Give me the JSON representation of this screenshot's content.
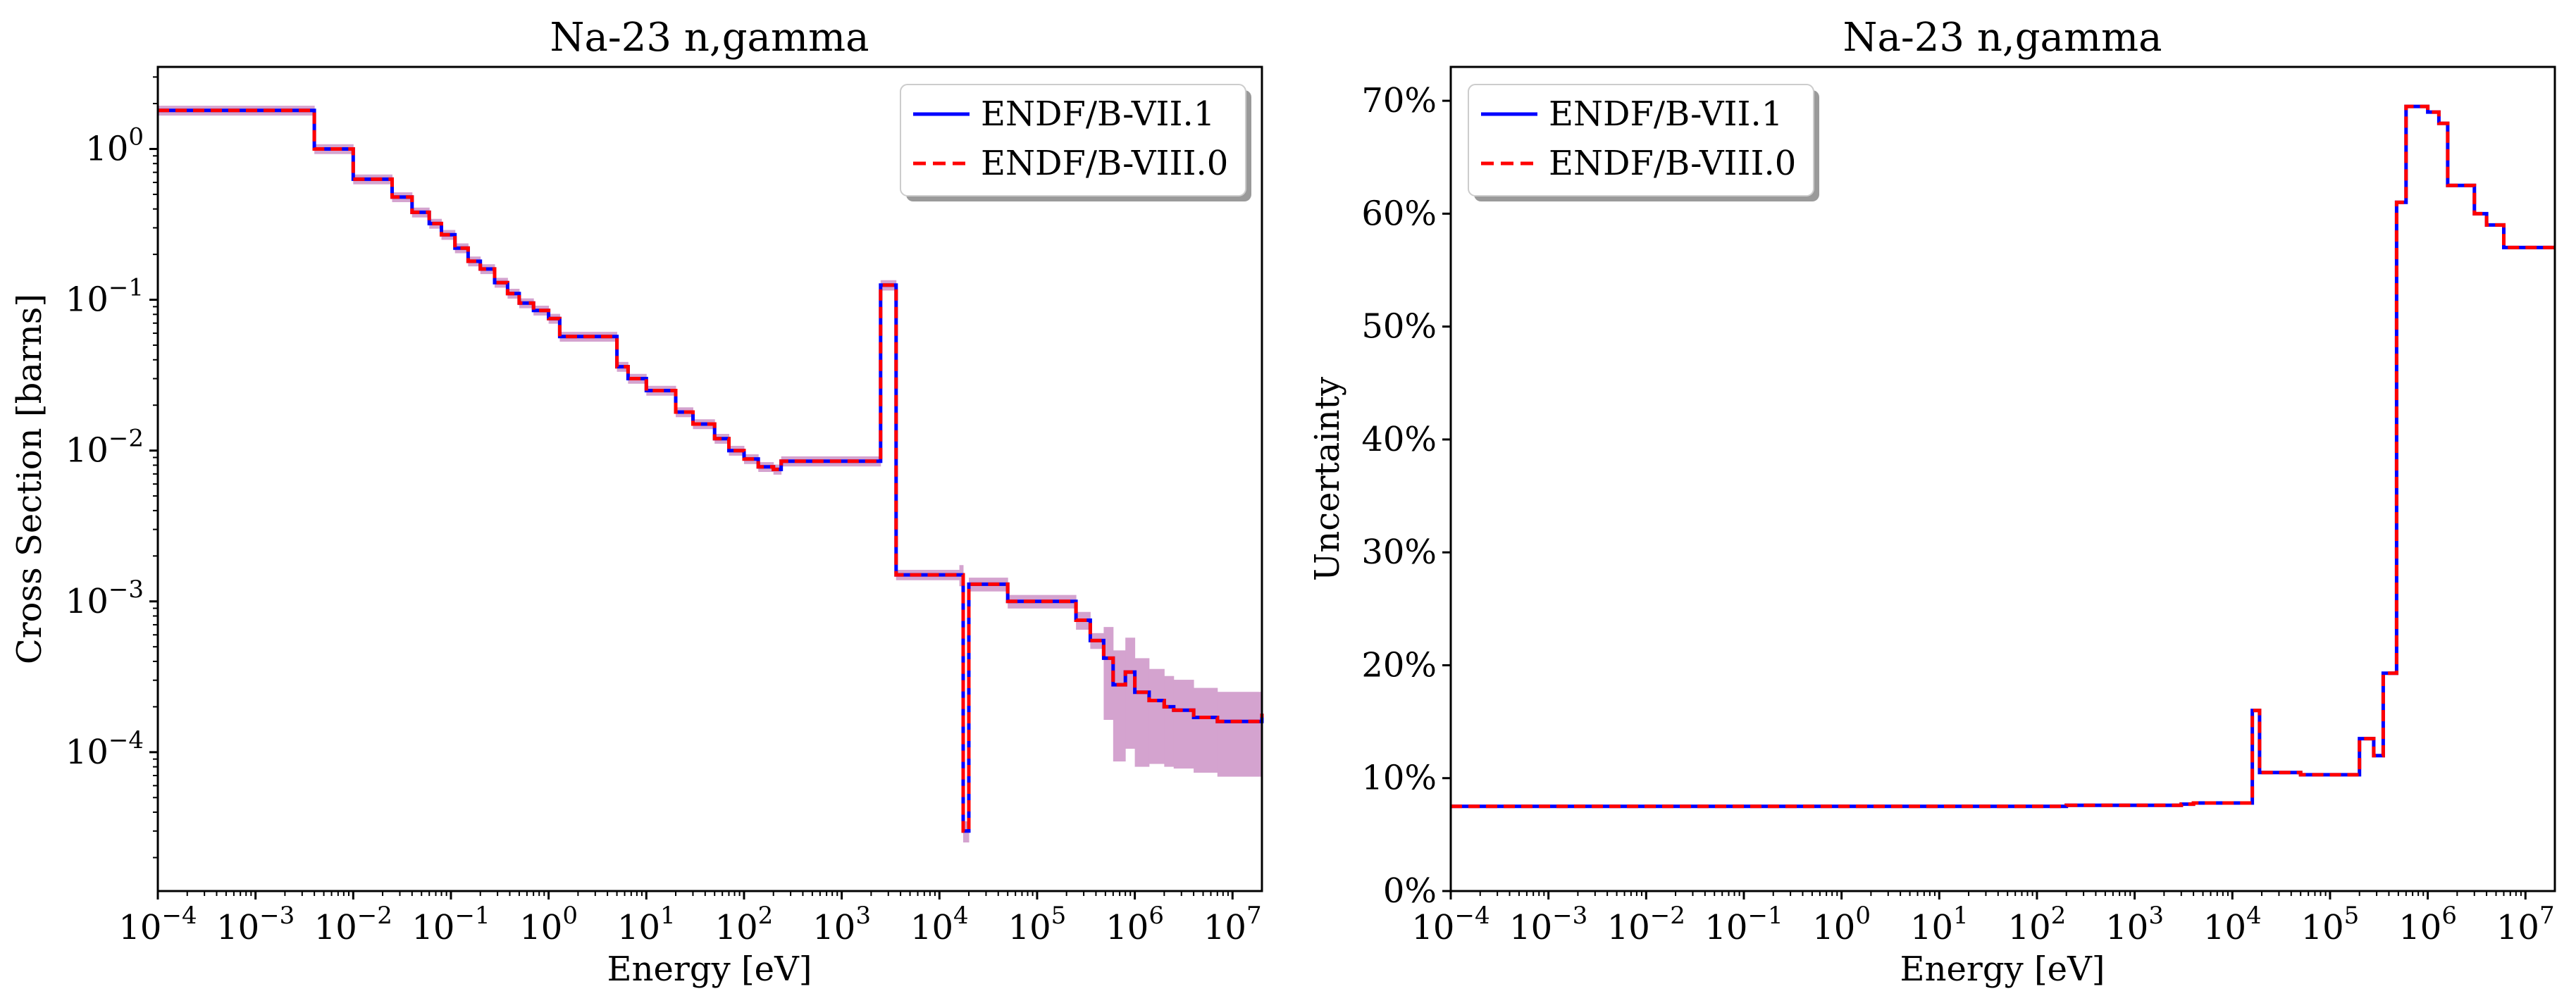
{
  "colors": {
    "endf71": "#0000ff",
    "endf80": "#ff0000",
    "band": "#d4a3cf",
    "axes": "#000000",
    "background": "#ffffff"
  },
  "chart_data": [
    {
      "type": "line",
      "title": "Na-23 n,gamma",
      "xlabel": "Energy [eV]",
      "ylabel": "Cross Section [barns]",
      "xscale": "log",
      "yscale": "log",
      "xlim": [
        0.0001,
        20000000
      ],
      "ylim": [
        1.2e-05,
        3.5
      ],
      "xticks": [
        {
          "value": 0.0001,
          "base": "10",
          "exp": "−4"
        },
        {
          "value": 0.001,
          "base": "10",
          "exp": "−3"
        },
        {
          "value": 0.01,
          "base": "10",
          "exp": "−2"
        },
        {
          "value": 0.1,
          "base": "10",
          "exp": "−1"
        },
        {
          "value": 1,
          "base": "10",
          "exp": "0"
        },
        {
          "value": 10,
          "base": "10",
          "exp": "1"
        },
        {
          "value": 100,
          "base": "10",
          "exp": "2"
        },
        {
          "value": 1000,
          "base": "10",
          "exp": "3"
        },
        {
          "value": 10000,
          "base": "10",
          "exp": "4"
        },
        {
          "value": 100000,
          "base": "10",
          "exp": "5"
        },
        {
          "value": 1000000,
          "base": "10",
          "exp": "6"
        },
        {
          "value": 10000000,
          "base": "10",
          "exp": "7"
        }
      ],
      "yticks": [
        {
          "value": 0.0001,
          "base": "10",
          "exp": "−4"
        },
        {
          "value": 0.001,
          "base": "10",
          "exp": "−3"
        },
        {
          "value": 0.01,
          "base": "10",
          "exp": "−2"
        },
        {
          "value": 0.1,
          "base": "10",
          "exp": "−1"
        },
        {
          "value": 1,
          "base": "10",
          "exp": "0"
        }
      ],
      "legend": {
        "location": "upper right",
        "entries": [
          "ENDF/B-VII.1",
          "ENDF/B-VIII.0"
        ]
      },
      "edges": [
        0.0001,
        0.004,
        0.01,
        0.025,
        0.04,
        0.06,
        0.08,
        0.11,
        0.15,
        0.2,
        0.28,
        0.38,
        0.5,
        0.7,
        1.0,
        1.3,
        5.0,
        6.5,
        10,
        20,
        30,
        50,
        70,
        100,
        140,
        200,
        240,
        2500,
        3600,
        16000,
        17500,
        20000,
        50000,
        250000,
        350000,
        480000,
        600000,
        800000,
        1000000,
        1400000,
        2000000,
        2500000,
        4000000,
        7000000,
        20000000
      ],
      "series": [
        {
          "name": "ENDF/B-VII.1",
          "style": "solid",
          "values": [
            1.8,
            1.0,
            0.63,
            0.48,
            0.38,
            0.32,
            0.27,
            0.22,
            0.18,
            0.16,
            0.13,
            0.11,
            0.095,
            0.085,
            0.075,
            0.057,
            0.036,
            0.03,
            0.025,
            0.018,
            0.015,
            0.012,
            0.01,
            0.0088,
            0.0078,
            0.0075,
            0.0085,
            0.125,
            0.0015,
            0.0015,
            3e-05,
            0.0013,
            0.001,
            0.00075,
            0.00055,
            0.00042,
            0.00028,
            0.00034,
            0.00025,
            0.00022,
            0.0002,
            0.00019,
            0.00017,
            0.00016,
            0.00018
          ]
        },
        {
          "name": "ENDF/B-VIII.0",
          "style": "dashed",
          "values": [
            1.8,
            1.0,
            0.63,
            0.48,
            0.38,
            0.32,
            0.27,
            0.22,
            0.18,
            0.16,
            0.13,
            0.11,
            0.095,
            0.085,
            0.075,
            0.057,
            0.036,
            0.03,
            0.025,
            0.018,
            0.015,
            0.012,
            0.01,
            0.0088,
            0.0078,
            0.0075,
            0.0085,
            0.125,
            0.0015,
            0.0015,
            3e-05,
            0.0013,
            0.001,
            0.00075,
            0.00055,
            0.00042,
            0.00028,
            0.00034,
            0.00025,
            0.00022,
            0.0002,
            0.00019,
            0.00017,
            0.00016,
            0.00018
          ]
        }
      ],
      "uncertainty_band": {
        "description": "shaded ±1σ band around ENDF/B-VII.1",
        "relative": [
          0.075,
          0.075,
          0.075,
          0.075,
          0.075,
          0.075,
          0.075,
          0.075,
          0.075,
          0.075,
          0.075,
          0.075,
          0.075,
          0.075,
          0.075,
          0.075,
          0.075,
          0.075,
          0.075,
          0.075,
          0.075,
          0.075,
          0.075,
          0.075,
          0.075,
          0.077,
          0.077,
          0.079,
          0.079,
          0.16,
          0.16,
          0.105,
          0.103,
          0.135,
          0.12,
          0.61,
          0.69,
          0.69,
          0.68,
          0.62,
          0.6,
          0.59,
          0.57,
          0.57,
          0.57
        ],
        "lower_clip": 1.2e-05
      }
    },
    {
      "type": "line",
      "title": "Na-23 n,gamma",
      "xlabel": "Energy [eV]",
      "ylabel": "Uncertainty",
      "xscale": "log",
      "yscale": "linear",
      "xlim": [
        0.0001,
        20000000
      ],
      "ylim": [
        0,
        0.73
      ],
      "xticks": [
        {
          "value": 0.0001,
          "base": "10",
          "exp": "−4"
        },
        {
          "value": 0.001,
          "base": "10",
          "exp": "−3"
        },
        {
          "value": 0.01,
          "base": "10",
          "exp": "−2"
        },
        {
          "value": 0.1,
          "base": "10",
          "exp": "−1"
        },
        {
          "value": 1,
          "base": "10",
          "exp": "0"
        },
        {
          "value": 10,
          "base": "10",
          "exp": "1"
        },
        {
          "value": 100,
          "base": "10",
          "exp": "2"
        },
        {
          "value": 1000,
          "base": "10",
          "exp": "3"
        },
        {
          "value": 10000,
          "base": "10",
          "exp": "4"
        },
        {
          "value": 100000,
          "base": "10",
          "exp": "5"
        },
        {
          "value": 1000000,
          "base": "10",
          "exp": "6"
        },
        {
          "value": 10000000,
          "base": "10",
          "exp": "7"
        }
      ],
      "yticks": [
        {
          "value": 0.0,
          "label": "0%"
        },
        {
          "value": 0.1,
          "label": "10%"
        },
        {
          "value": 0.2,
          "label": "20%"
        },
        {
          "value": 0.3,
          "label": "30%"
        },
        {
          "value": 0.4,
          "label": "40%"
        },
        {
          "value": 0.5,
          "label": "50%"
        },
        {
          "value": 0.6,
          "label": "60%"
        },
        {
          "value": 0.7,
          "label": "70%"
        }
      ],
      "legend": {
        "location": "upper left",
        "entries": [
          "ENDF/B-VII.1",
          "ENDF/B-VIII.0"
        ]
      },
      "edges": [
        0.0001,
        200,
        3000,
        4000,
        16000,
        19000,
        50000,
        200000,
        280000,
        350000,
        480000,
        600000,
        1000000,
        1300000,
        1600000,
        2000000,
        3000000,
        4000000,
        6000000,
        20000000
      ],
      "series": [
        {
          "name": "ENDF/B-VII.1",
          "style": "solid",
          "values": [
            0.075,
            0.076,
            0.077,
            0.078,
            0.16,
            0.105,
            0.103,
            0.135,
            0.12,
            0.193,
            0.61,
            0.695,
            0.69,
            0.68,
            0.625,
            0.625,
            0.6,
            0.59,
            0.57
          ]
        },
        {
          "name": "ENDF/B-VIII.0",
          "style": "dashed",
          "values": [
            0.075,
            0.076,
            0.077,
            0.078,
            0.16,
            0.105,
            0.103,
            0.135,
            0.12,
            0.193,
            0.61,
            0.695,
            0.69,
            0.68,
            0.625,
            0.625,
            0.6,
            0.59,
            0.57
          ]
        }
      ]
    }
  ]
}
